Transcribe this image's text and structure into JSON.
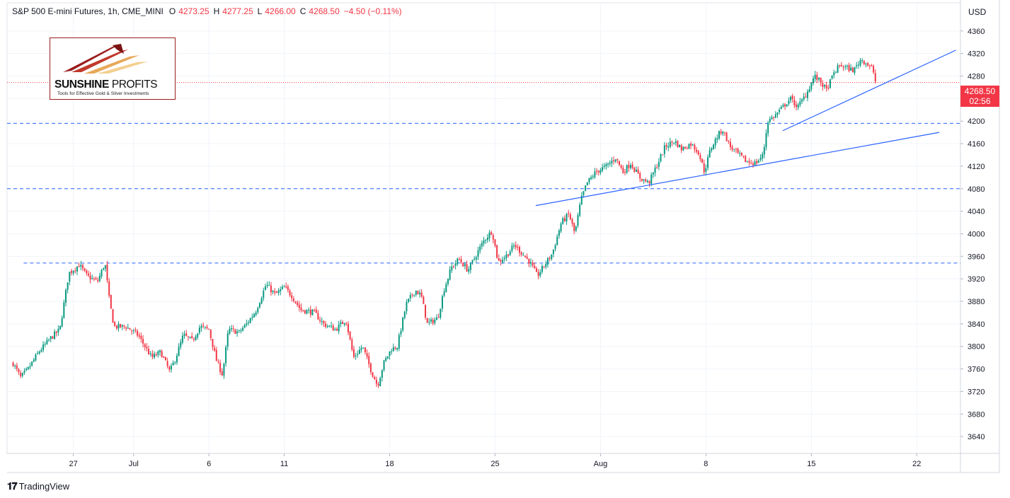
{
  "header": {
    "symbol": "S&P 500 E-mini Futures, 1h, CME_MINI",
    "open_label": "O",
    "open": "4273.25",
    "high_label": "H",
    "high": "4277.25",
    "low_label": "L",
    "low": "4266.00",
    "close_label": "C",
    "close": "4268.50",
    "change": "−4.50 (−0.11%)"
  },
  "currency": "USD",
  "price_tag": {
    "price": "4268.50",
    "countdown": "02:56"
  },
  "logo": {
    "name_bold": "SUNSHINE",
    "name_plain": "PROFITS",
    "tagline": "Tools for Effective Gold & Silver Investments"
  },
  "branding": "TradingView",
  "colors": {
    "up": "#089981",
    "down": "#f23645",
    "trendline": "#2962ff",
    "accent_red": "#f23645"
  },
  "chart_data": {
    "type": "candlestick",
    "title": "S&P 500 E-mini Futures, 1h, CME_MINI",
    "ylim": [
      3610,
      4410
    ],
    "y_ticks": [
      4360,
      4320,
      4280,
      4240,
      4200,
      4160,
      4120,
      4080,
      4040,
      4000,
      3960,
      3920,
      3880,
      3840,
      3800,
      3760,
      3720,
      3680,
      3640
    ],
    "x_tick_labels": [
      "27",
      "Jul",
      "6",
      "11",
      "18",
      "25",
      "Aug",
      "8",
      "15",
      "22"
    ],
    "x_tick_days": [
      -4,
      0,
      5,
      10,
      17,
      24,
      31,
      38,
      45,
      52
    ],
    "x_range_days": [
      -8.4,
      54.9
    ],
    "anchors": [
      [
        -8.0,
        3770
      ],
      [
        -7.5,
        3745
      ],
      [
        -7.0,
        3760
      ],
      [
        -6.3,
        3790
      ],
      [
        -5.5,
        3815
      ],
      [
        -4.9,
        3830
      ],
      [
        -4.6,
        3880
      ],
      [
        -4.3,
        3930
      ],
      [
        -3.6,
        3945
      ],
      [
        -3.1,
        3925
      ],
      [
        -2.4,
        3915
      ],
      [
        -1.9,
        3948
      ],
      [
        -1.6,
        3880
      ],
      [
        -1.3,
        3835
      ],
      [
        -0.5,
        3835
      ],
      [
        0.3,
        3820
      ],
      [
        1.2,
        3780
      ],
      [
        1.8,
        3790
      ],
      [
        2.4,
        3755
      ],
      [
        2.8,
        3780
      ],
      [
        3.3,
        3820
      ],
      [
        3.9,
        3810
      ],
      [
        4.4,
        3835
      ],
      [
        5.0,
        3830
      ],
      [
        5.5,
        3775
      ],
      [
        5.9,
        3750
      ],
      [
        6.3,
        3830
      ],
      [
        7.0,
        3825
      ],
      [
        7.5,
        3840
      ],
      [
        8.1,
        3862
      ],
      [
        8.8,
        3910
      ],
      [
        9.4,
        3892
      ],
      [
        10.0,
        3905
      ],
      [
        10.5,
        3890
      ],
      [
        11.1,
        3865
      ],
      [
        12.0,
        3860
      ],
      [
        12.6,
        3840
      ],
      [
        13.4,
        3830
      ],
      [
        14.1,
        3848
      ],
      [
        14.6,
        3780
      ],
      [
        15.2,
        3800
      ],
      [
        15.8,
        3755
      ],
      [
        16.2,
        3730
      ],
      [
        16.6,
        3770
      ],
      [
        17.1,
        3795
      ],
      [
        17.5,
        3800
      ],
      [
        18.1,
        3875
      ],
      [
        18.7,
        3900
      ],
      [
        19.1,
        3890
      ],
      [
        19.5,
        3840
      ],
      [
        20.2,
        3850
      ],
      [
        20.6,
        3900
      ],
      [
        21.1,
        3940
      ],
      [
        21.6,
        3955
      ],
      [
        22.2,
        3935
      ],
      [
        22.7,
        3960
      ],
      [
        23.3,
        3990
      ],
      [
        23.8,
        4005
      ],
      [
        24.2,
        3950
      ],
      [
        24.7,
        3960
      ],
      [
        25.3,
        3980
      ],
      [
        25.8,
        3965
      ],
      [
        26.3,
        3950
      ],
      [
        26.8,
        3925
      ],
      [
        27.3,
        3945
      ],
      [
        27.8,
        3965
      ],
      [
        28.4,
        4020
      ],
      [
        28.9,
        4035
      ],
      [
        29.3,
        4000
      ],
      [
        29.7,
        4060
      ],
      [
        30.1,
        4090
      ],
      [
        30.7,
        4110
      ],
      [
        31.4,
        4120
      ],
      [
        32.0,
        4135
      ],
      [
        32.5,
        4110
      ],
      [
        33.0,
        4125
      ],
      [
        33.6,
        4100
      ],
      [
        34.2,
        4090
      ],
      [
        34.8,
        4125
      ],
      [
        35.3,
        4155
      ],
      [
        35.9,
        4165
      ],
      [
        36.4,
        4150
      ],
      [
        37.0,
        4160
      ],
      [
        37.5,
        4145
      ],
      [
        37.9,
        4110
      ],
      [
        38.3,
        4150
      ],
      [
        38.8,
        4175
      ],
      [
        39.1,
        4185
      ],
      [
        39.6,
        4155
      ],
      [
        40.2,
        4140
      ],
      [
        40.7,
        4128
      ],
      [
        41.3,
        4125
      ],
      [
        41.8,
        4140
      ],
      [
        42.1,
        4200
      ],
      [
        42.6,
        4210
      ],
      [
        43.1,
        4225
      ],
      [
        43.6,
        4240
      ],
      [
        44.1,
        4225
      ],
      [
        44.7,
        4250
      ],
      [
        45.2,
        4280
      ],
      [
        45.6,
        4270
      ],
      [
        46.0,
        4255
      ],
      [
        46.5,
        4285
      ],
      [
        46.9,
        4300
      ],
      [
        47.3,
        4295
      ],
      [
        47.8,
        4290
      ],
      [
        48.3,
        4310
      ],
      [
        48.8,
        4300
      ],
      [
        49.0,
        4295
      ],
      [
        49.3,
        4266
      ]
    ],
    "horizontal_levels": [
      4196,
      4080,
      3948
    ],
    "trendlines": [
      {
        "from": [
          26.7,
          4050
        ],
        "to": [
          53.5,
          4180
        ]
      },
      {
        "from": [
          43.1,
          4183
        ],
        "to": [
          54.6,
          4326
        ]
      }
    ],
    "last_price": 4268.5
  }
}
